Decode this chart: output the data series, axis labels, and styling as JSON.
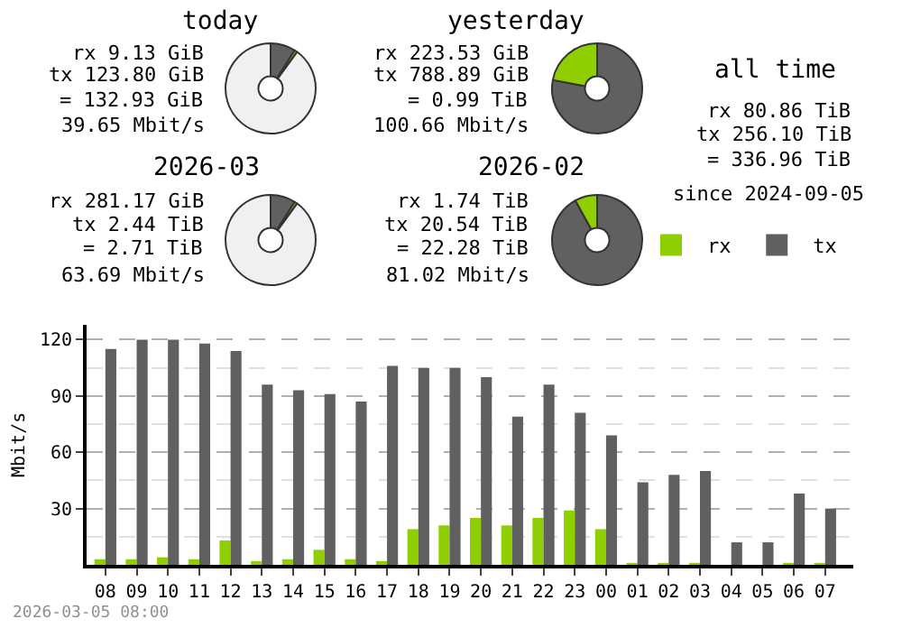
{
  "chart_data": [
    {
      "type": "donut",
      "title": "today",
      "categories": [
        null,
        null,
        null
      ],
      "values": [
        9,
        1,
        90
      ],
      "colors": [
        "#606060",
        "#8fce00",
        "#f0f0f0"
      ],
      "annotations": [
        "rx 9.13 GiB",
        "tx 123.80 GiB",
        "= 132.93 GiB",
        "39.65 Mbit/s"
      ]
    },
    {
      "type": "donut",
      "title": "yesterday",
      "categories": [
        null,
        null
      ],
      "values": [
        78,
        22
      ],
      "colors": [
        "#606060",
        "#8fce00"
      ],
      "annotations": [
        "rx 223.53 GiB",
        "tx 788.89 GiB",
        "= 0.99 TiB",
        "100.66 Mbit/s"
      ]
    },
    {
      "type": "donut",
      "title": "2026-03",
      "categories": [
        null,
        null,
        null
      ],
      "values": [
        9,
        1,
        90
      ],
      "colors": [
        "#606060",
        "#8fce00",
        "#f0f0f0"
      ],
      "annotations": [
        "rx 281.17 GiB",
        "tx 2.44 TiB",
        "= 2.71 TiB",
        "63.69 Mbit/s"
      ]
    },
    {
      "type": "donut",
      "title": "2026-02",
      "categories": [
        null,
        null
      ],
      "values": [
        92,
        8
      ],
      "colors": [
        "#606060",
        "#8fce00"
      ],
      "annotations": [
        "rx 1.74 TiB",
        "tx 20.54 TiB",
        "= 22.28 TiB",
        "81.02 Mbit/s"
      ]
    },
    {
      "type": "other",
      "title": "all time",
      "annotations": [
        "rx 80.86 TiB",
        "tx 256.10 TiB",
        "= 336.96 TiB",
        "since 2024-09-05"
      ]
    },
    {
      "type": "bar",
      "ylabel": "Mbit/s",
      "categories": [
        "08",
        "09",
        "10",
        "11",
        "12",
        "13",
        "14",
        "15",
        "16",
        "17",
        "18",
        "19",
        "20",
        "21",
        "22",
        "23",
        "00",
        "01",
        "02",
        "03",
        "04",
        "05",
        "06",
        "07"
      ],
      "series": [
        {
          "name": "rx",
          "color": "#8fce00",
          "values": [
            3,
            3,
            4,
            3,
            13,
            2,
            3,
            8,
            3,
            2,
            19,
            21,
            25,
            21,
            25,
            29,
            19,
            1,
            1,
            1,
            null,
            null,
            1,
            1
          ]
        },
        {
          "name": "tx",
          "color": "#606060",
          "values": [
            115,
            120,
            120,
            118,
            114,
            96,
            93,
            91,
            87,
            106,
            105,
            105,
            100,
            79,
            96,
            81,
            69,
            44,
            48,
            50,
            12,
            12,
            38,
            30
          ]
        }
      ],
      "ylim": [
        0,
        128
      ],
      "yticks": [
        30,
        60,
        90,
        120
      ],
      "grid": "y",
      "legend": "top right",
      "annotations": [
        "2026-03-05 08:00"
      ]
    }
  ]
}
